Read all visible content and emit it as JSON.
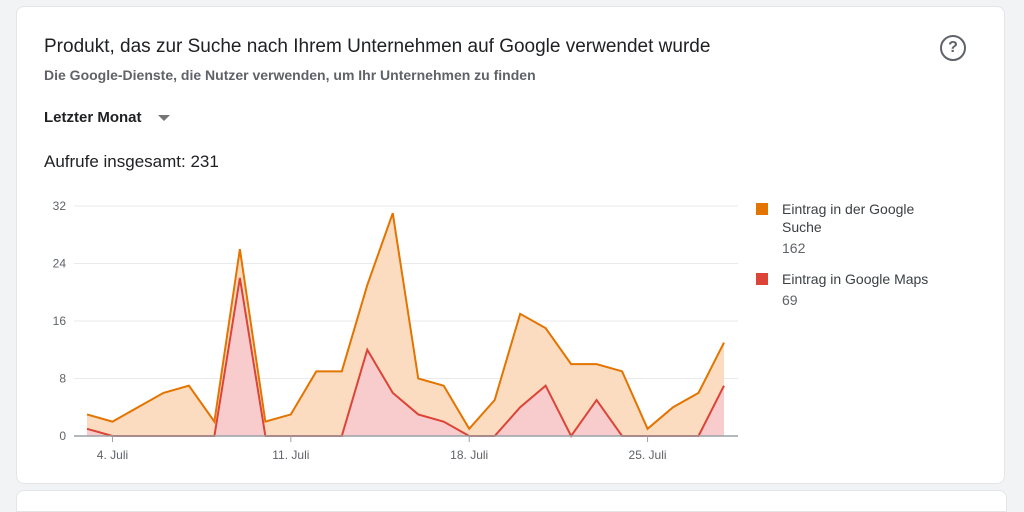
{
  "card": {
    "title": "Produkt, das zur Suche nach Ihrem Unternehmen auf Google verwendet wurde",
    "subtitle": "Die Google-Dienste, die Nutzer verwenden, um Ihr Unternehmen zu finden",
    "help_icon": "help-circle-icon",
    "help_glyph": "?"
  },
  "period": {
    "selected": "Letzter Monat",
    "icon": "caret-down-icon"
  },
  "total": {
    "text": "Aufrufe insgesamt: 231"
  },
  "legend": [
    {
      "name": "Eintrag in der Google Suche",
      "value": "162",
      "color": "#e37400"
    },
    {
      "name": "Eintrag in Google Maps",
      "value": "69",
      "color": "#db4437"
    }
  ],
  "chart_data": {
    "type": "area",
    "title": "",
    "xlabel": "",
    "ylabel": "",
    "ylim": [
      0,
      32
    ],
    "yticks": [
      0,
      8,
      16,
      24,
      32
    ],
    "x": [
      "3. Juli",
      "4. Juli",
      "5. Juli",
      "6. Juli",
      "7. Juli",
      "8. Juli",
      "9. Juli",
      "10. Juli",
      "11. Juli",
      "12. Juli",
      "13. Juli",
      "14. Juli",
      "15. Juli",
      "16. Juli",
      "17. Juli",
      "18. Juli",
      "19. Juli",
      "20. Juli",
      "21. Juli",
      "22. Juli",
      "23. Juli",
      "24. Juli",
      "25. Juli",
      "26. Juli",
      "27. Juli",
      "28. Juli"
    ],
    "xticks": [
      {
        "index": 1,
        "label": "4. Juli"
      },
      {
        "index": 8,
        "label": "11. Juli"
      },
      {
        "index": 15,
        "label": "18. Juli"
      },
      {
        "index": 22,
        "label": "25. Juli"
      }
    ],
    "grid": true,
    "legend_position": "right",
    "series": [
      {
        "name": "Eintrag in der Google Suche",
        "color": "#e37400",
        "fill": "#fbdcc0",
        "values": [
          3,
          2,
          4,
          6,
          7,
          2,
          26,
          2,
          3,
          9,
          9,
          21,
          31,
          8,
          7,
          1,
          5,
          17,
          15,
          10,
          10,
          9,
          1,
          4,
          6,
          13
        ]
      },
      {
        "name": "Eintrag in Google Maps",
        "color": "#db4437",
        "fill": "#f8cccc",
        "values": [
          1,
          0,
          0,
          0,
          0,
          0,
          22,
          0,
          0,
          0,
          0,
          12,
          6,
          3,
          2,
          0,
          0,
          4,
          7,
          0,
          5,
          0,
          0,
          0,
          0,
          7
        ]
      }
    ]
  }
}
